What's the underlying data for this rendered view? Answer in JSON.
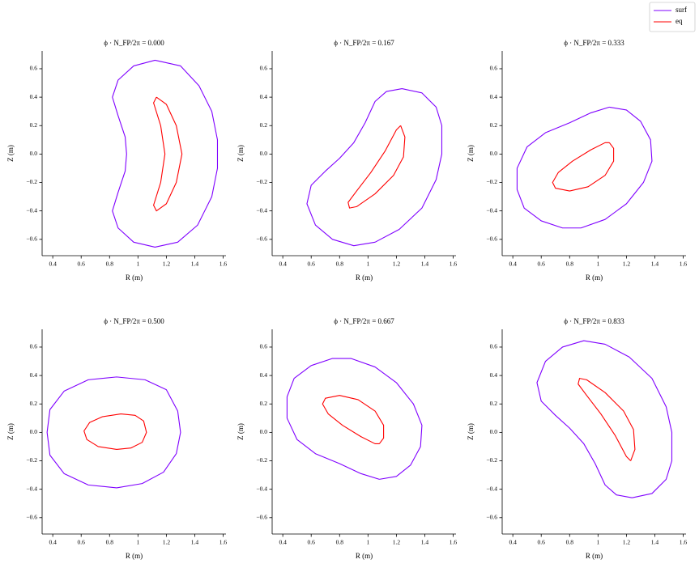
{
  "legend": "upper right",
  "chart_data": [
    {
      "type": "line",
      "title": "ϕ · N_FP/2π = 0.000",
      "x_label": "R (m)",
      "y_label": "Z (m)",
      "xlim": [
        0.325,
        1.62
      ],
      "ylim": [
        -0.715,
        0.725
      ],
      "xticks": [
        0.4,
        0.6,
        0.8,
        1.0,
        1.2,
        1.4,
        1.6
      ],
      "yticks": [
        {
          "value": -0.6,
          "label": "−0.6"
        },
        {
          "value": -0.4,
          "label": "−0.4"
        },
        {
          "value": -0.2,
          "label": "−0.2"
        },
        {
          "value": 0,
          "label": "0.0"
        },
        {
          "value": 0.2,
          "label": "0.2"
        },
        {
          "value": 0.4,
          "label": "0.4"
        },
        {
          "value": 0.6,
          "label": "0.6"
        }
      ],
      "series": [
        {
          "name": "surf",
          "color": "#7f00ff",
          "x": [
            1.12,
            1.3,
            1.43,
            1.52,
            1.56,
            1.56,
            1.52,
            1.42,
            1.28,
            1.12,
            0.97,
            0.86,
            0.82,
            0.86,
            0.91,
            0.92,
            0.91,
            0.86,
            0.82,
            0.86,
            0.97,
            1.12
          ],
          "values": [
            0.66,
            0.62,
            0.48,
            0.3,
            0.1,
            -0.1,
            -0.3,
            -0.5,
            -0.62,
            -0.655,
            -0.62,
            -0.52,
            -0.4,
            -0.27,
            -0.12,
            0,
            0.12,
            0.27,
            0.4,
            0.52,
            0.62,
            0.66
          ]
        },
        {
          "name": "eq",
          "color": "#ff0000",
          "x": [
            1.13,
            1.2,
            1.27,
            1.31,
            1.27,
            1.2,
            1.13,
            1.11,
            1.16,
            1.19,
            1.16,
            1.11,
            1.13
          ],
          "values": [
            0.4,
            0.35,
            0.2,
            0,
            -0.2,
            -0.35,
            -0.4,
            -0.36,
            -0.2,
            0,
            0.2,
            0.36,
            0.4
          ]
        }
      ]
    },
    {
      "type": "line",
      "title": "ϕ · N_FP/2π = 0.167",
      "x_label": "R (m)",
      "y_label": "Z (m)",
      "xlim": [
        0.325,
        1.62
      ],
      "ylim": [
        -0.715,
        0.725
      ],
      "xticks": [
        0.4,
        0.6,
        0.8,
        1.0,
        1.2,
        1.4,
        1.6
      ],
      "yticks": [
        {
          "value": -0.6,
          "label": "−0.6"
        },
        {
          "value": -0.4,
          "label": "−0.4"
        },
        {
          "value": -0.2,
          "label": "−0.2"
        },
        {
          "value": 0,
          "label": "0.0"
        },
        {
          "value": 0.2,
          "label": "0.2"
        },
        {
          "value": 0.4,
          "label": "0.4"
        },
        {
          "value": 0.6,
          "label": "0.6"
        }
      ],
      "series": [
        {
          "name": "surf",
          "color": "#7f00ff",
          "x": [
            1.24,
            1.38,
            1.48,
            1.52,
            1.52,
            1.48,
            1.38,
            1.22,
            1.05,
            0.9,
            0.75,
            0.63,
            0.57,
            0.6,
            0.7,
            0.8,
            0.9,
            0.98,
            1.05,
            1.13,
            1.24
          ],
          "values": [
            0.46,
            0.43,
            0.33,
            0.2,
            0,
            -0.18,
            -0.38,
            -0.53,
            -0.62,
            -0.645,
            -0.6,
            -0.5,
            -0.35,
            -0.22,
            -0.12,
            -0.03,
            0.08,
            0.22,
            0.37,
            0.44,
            0.46
          ]
        },
        {
          "name": "eq",
          "color": "#ff0000",
          "x": [
            1.23,
            1.26,
            1.25,
            1.18,
            1.05,
            0.92,
            0.87,
            0.86,
            0.92,
            1.02,
            1.12,
            1.2,
            1.23
          ],
          "values": [
            0.2,
            0.12,
            -0.02,
            -0.15,
            -0.28,
            -0.37,
            -0.38,
            -0.34,
            -0.26,
            -0.13,
            0.02,
            0.17,
            0.2
          ]
        }
      ]
    },
    {
      "type": "line",
      "title": "ϕ · N_FP/2π = 0.333",
      "x_label": "R (m)",
      "y_label": "Z (m)",
      "xlim": [
        0.325,
        1.62
      ],
      "ylim": [
        -0.715,
        0.725
      ],
      "xticks": [
        0.4,
        0.6,
        0.8,
        1.0,
        1.2,
        1.4,
        1.6
      ],
      "yticks": [
        {
          "value": -0.6,
          "label": "−0.6"
        },
        {
          "value": -0.4,
          "label": "−0.4"
        },
        {
          "value": -0.2,
          "label": "−0.2"
        },
        {
          "value": 0,
          "label": "0.0"
        },
        {
          "value": 0.2,
          "label": "0.2"
        },
        {
          "value": 0.4,
          "label": "0.4"
        },
        {
          "value": 0.6,
          "label": "0.6"
        }
      ],
      "series": [
        {
          "name": "surf",
          "color": "#7f00ff",
          "x": [
            1.08,
            1.2,
            1.3,
            1.37,
            1.38,
            1.32,
            1.2,
            1.05,
            0.88,
            0.75,
            0.6,
            0.48,
            0.43,
            0.43,
            0.5,
            0.63,
            0.8,
            0.95,
            1.08
          ],
          "values": [
            0.33,
            0.31,
            0.23,
            0.1,
            -0.05,
            -0.2,
            -0.35,
            -0.46,
            -0.52,
            -0.52,
            -0.47,
            -0.38,
            -0.25,
            -0.1,
            0.05,
            0.15,
            0.22,
            0.29,
            0.33
          ]
        },
        {
          "name": "eq",
          "color": "#ff0000",
          "x": [
            1.08,
            1.11,
            1.11,
            1.05,
            0.93,
            0.8,
            0.7,
            0.68,
            0.72,
            0.82,
            0.95,
            1.05,
            1.08
          ],
          "values": [
            0.08,
            0.04,
            -0.05,
            -0.15,
            -0.23,
            -0.26,
            -0.24,
            -0.2,
            -0.13,
            -0.05,
            0.03,
            0.08,
            0.08
          ]
        }
      ]
    },
    {
      "type": "line",
      "title": "ϕ · N_FP/2π = 0.500",
      "x_label": "R (m)",
      "y_label": "Z (m)",
      "xlim": [
        0.325,
        1.62
      ],
      "ylim": [
        -0.715,
        0.725
      ],
      "xticks": [
        0.4,
        0.6,
        0.8,
        1.0,
        1.2,
        1.4,
        1.6
      ],
      "yticks": [
        {
          "value": -0.6,
          "label": "−0.6"
        },
        {
          "value": -0.4,
          "label": "−0.4"
        },
        {
          "value": -0.2,
          "label": "−0.2"
        },
        {
          "value": 0,
          "label": "0.0"
        },
        {
          "value": 0.2,
          "label": "0.2"
        },
        {
          "value": 0.4,
          "label": "0.4"
        },
        {
          "value": 0.6,
          "label": "0.6"
        }
      ],
      "series": [
        {
          "name": "surf",
          "color": "#7f00ff",
          "x": [
            0.85,
            1.05,
            1.2,
            1.28,
            1.3,
            1.27,
            1.18,
            1.03,
            0.85,
            0.65,
            0.48,
            0.38,
            0.36,
            0.38,
            0.48,
            0.65,
            0.85
          ],
          "values": [
            0.39,
            0.37,
            0.3,
            0.15,
            0,
            -0.15,
            -0.28,
            -0.36,
            -0.39,
            -0.37,
            -0.29,
            -0.16,
            0,
            0.16,
            0.29,
            0.37,
            0.39
          ]
        },
        {
          "name": "eq",
          "color": "#ff0000",
          "x": [
            0.88,
            0.98,
            1.04,
            1.06,
            1.03,
            0.95,
            0.85,
            0.72,
            0.64,
            0.62,
            0.66,
            0.75,
            0.88
          ],
          "values": [
            0.13,
            0.12,
            0.08,
            0,
            -0.07,
            -0.11,
            -0.12,
            -0.1,
            -0.05,
            0.01,
            0.07,
            0.11,
            0.13
          ]
        }
      ]
    },
    {
      "type": "line",
      "title": "ϕ · N_FP/2π = 0.667",
      "x_label": "R (m)",
      "y_label": "Z (m)",
      "xlim": [
        0.325,
        1.62
      ],
      "ylim": [
        -0.715,
        0.725
      ],
      "xticks": [
        0.4,
        0.6,
        0.8,
        1.0,
        1.2,
        1.4,
        1.6
      ],
      "yticks": [
        {
          "value": -0.6,
          "label": "−0.6"
        },
        {
          "value": -0.4,
          "label": "−0.4"
        },
        {
          "value": -0.2,
          "label": "−0.2"
        },
        {
          "value": 0,
          "label": "0.0"
        },
        {
          "value": 0.2,
          "label": "0.2"
        },
        {
          "value": 0.4,
          "label": "0.4"
        },
        {
          "value": 0.6,
          "label": "0.6"
        }
      ],
      "series": [
        {
          "name": "surf",
          "color": "#7f00ff",
          "x": [
            1.08,
            1.2,
            1.3,
            1.37,
            1.38,
            1.32,
            1.2,
            1.05,
            0.88,
            0.75,
            0.6,
            0.48,
            0.43,
            0.43,
            0.5,
            0.63,
            0.8,
            0.95,
            1.08
          ],
          "values": [
            -0.33,
            -0.31,
            -0.23,
            -0.1,
            0.05,
            0.2,
            0.35,
            0.46,
            0.52,
            0.52,
            0.47,
            0.38,
            0.25,
            0.1,
            -0.05,
            -0.15,
            -0.22,
            -0.29,
            -0.33
          ]
        },
        {
          "name": "eq",
          "color": "#ff0000",
          "x": [
            1.08,
            1.11,
            1.11,
            1.05,
            0.93,
            0.8,
            0.7,
            0.68,
            0.72,
            0.82,
            0.95,
            1.05,
            1.08
          ],
          "values": [
            -0.08,
            -0.04,
            0.05,
            0.15,
            0.23,
            0.26,
            0.24,
            0.2,
            0.13,
            0.05,
            -0.03,
            -0.08,
            -0.08
          ]
        }
      ]
    },
    {
      "type": "line",
      "title": "ϕ · N_FP/2π = 0.833",
      "x_label": "R (m)",
      "y_label": "Z (m)",
      "xlim": [
        0.325,
        1.62
      ],
      "ylim": [
        -0.715,
        0.725
      ],
      "xticks": [
        0.4,
        0.6,
        0.8,
        1.0,
        1.2,
        1.4,
        1.6
      ],
      "yticks": [
        {
          "value": -0.6,
          "label": "−0.6"
        },
        {
          "value": -0.4,
          "label": "−0.4"
        },
        {
          "value": -0.2,
          "label": "−0.2"
        },
        {
          "value": 0,
          "label": "0.0"
        },
        {
          "value": 0.2,
          "label": "0.2"
        },
        {
          "value": 0.4,
          "label": "0.4"
        },
        {
          "value": 0.6,
          "label": "0.6"
        }
      ],
      "series": [
        {
          "name": "surf",
          "color": "#7f00ff",
          "x": [
            1.24,
            1.38,
            1.48,
            1.52,
            1.52,
            1.48,
            1.38,
            1.22,
            1.05,
            0.9,
            0.75,
            0.63,
            0.57,
            0.6,
            0.7,
            0.8,
            0.9,
            0.98,
            1.05,
            1.13,
            1.24
          ],
          "values": [
            -0.46,
            -0.43,
            -0.33,
            -0.2,
            0,
            0.18,
            0.38,
            0.53,
            0.62,
            0.645,
            0.6,
            0.5,
            0.35,
            0.22,
            0.12,
            0.03,
            -0.08,
            -0.22,
            -0.37,
            -0.44,
            -0.46
          ]
        },
        {
          "name": "eq",
          "color": "#ff0000",
          "x": [
            1.23,
            1.26,
            1.25,
            1.18,
            1.05,
            0.92,
            0.87,
            0.86,
            0.92,
            1.02,
            1.12,
            1.2,
            1.23
          ],
          "values": [
            -0.2,
            -0.12,
            0.02,
            0.15,
            0.28,
            0.37,
            0.38,
            0.34,
            0.26,
            0.13,
            -0.02,
            -0.17,
            -0.2
          ]
        }
      ]
    }
  ]
}
